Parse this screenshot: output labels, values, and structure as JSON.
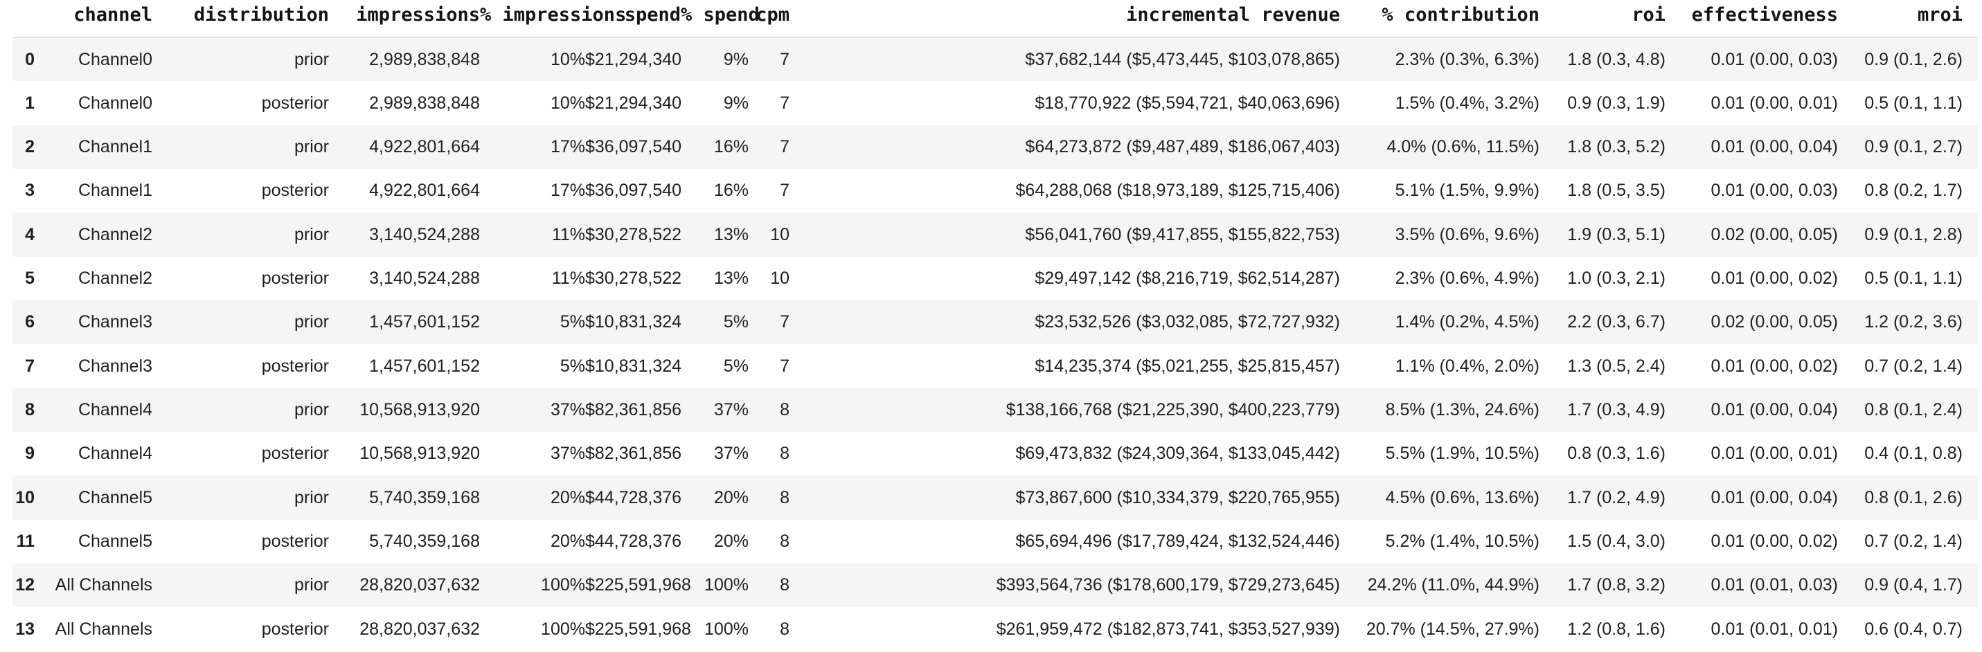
{
  "table": {
    "index_header": "",
    "columns": [
      {
        "key": "channel",
        "label": "channel"
      },
      {
        "key": "distribution",
        "label": "distribution"
      },
      {
        "key": "impressions",
        "label": "impressions"
      },
      {
        "key": "pct_impressions",
        "label": "% impressions"
      },
      {
        "key": "spend",
        "label": "spend"
      },
      {
        "key": "pct_spend",
        "label": "% spend"
      },
      {
        "key": "cpm",
        "label": "cpm"
      },
      {
        "key": "incremental_revenue",
        "label": "incremental revenue"
      },
      {
        "key": "pct_contribution",
        "label": "% contribution"
      },
      {
        "key": "roi",
        "label": "roi"
      },
      {
        "key": "effectiveness",
        "label": "effectiveness"
      },
      {
        "key": "mroi",
        "label": "mroi"
      }
    ],
    "rows": [
      {
        "index": "0",
        "channel": "Channel0",
        "distribution": "prior",
        "impressions": "2,989,838,848",
        "pct_impressions": "10%",
        "spend": "$21,294,340",
        "pct_spend": "9%",
        "cpm": "7",
        "incremental_revenue": "$37,682,144 ($5,473,445, $103,078,865)",
        "pct_contribution": "2.3% (0.3%, 6.3%)",
        "roi": "1.8 (0.3, 4.8)",
        "effectiveness": "0.01 (0.00, 0.03)",
        "mroi": "0.9 (0.1, 2.6)"
      },
      {
        "index": "1",
        "channel": "Channel0",
        "distribution": "posterior",
        "impressions": "2,989,838,848",
        "pct_impressions": "10%",
        "spend": "$21,294,340",
        "pct_spend": "9%",
        "cpm": "7",
        "incremental_revenue": "$18,770,922 ($5,594,721, $40,063,696)",
        "pct_contribution": "1.5% (0.4%, 3.2%)",
        "roi": "0.9 (0.3, 1.9)",
        "effectiveness": "0.01 (0.00, 0.01)",
        "mroi": "0.5 (0.1, 1.1)"
      },
      {
        "index": "2",
        "channel": "Channel1",
        "distribution": "prior",
        "impressions": "4,922,801,664",
        "pct_impressions": "17%",
        "spend": "$36,097,540",
        "pct_spend": "16%",
        "cpm": "7",
        "incremental_revenue": "$64,273,872 ($9,487,489, $186,067,403)",
        "pct_contribution": "4.0% (0.6%, 11.5%)",
        "roi": "1.8 (0.3, 5.2)",
        "effectiveness": "0.01 (0.00, 0.04)",
        "mroi": "0.9 (0.1, 2.7)"
      },
      {
        "index": "3",
        "channel": "Channel1",
        "distribution": "posterior",
        "impressions": "4,922,801,664",
        "pct_impressions": "17%",
        "spend": "$36,097,540",
        "pct_spend": "16%",
        "cpm": "7",
        "incremental_revenue": "$64,288,068 ($18,973,189, $125,715,406)",
        "pct_contribution": "5.1% (1.5%, 9.9%)",
        "roi": "1.8 (0.5, 3.5)",
        "effectiveness": "0.01 (0.00, 0.03)",
        "mroi": "0.8 (0.2, 1.7)"
      },
      {
        "index": "4",
        "channel": "Channel2",
        "distribution": "prior",
        "impressions": "3,140,524,288",
        "pct_impressions": "11%",
        "spend": "$30,278,522",
        "pct_spend": "13%",
        "cpm": "10",
        "incremental_revenue": "$56,041,760 ($9,417,855, $155,822,753)",
        "pct_contribution": "3.5% (0.6%, 9.6%)",
        "roi": "1.9 (0.3, 5.1)",
        "effectiveness": "0.02 (0.00, 0.05)",
        "mroi": "0.9 (0.1, 2.8)"
      },
      {
        "index": "5",
        "channel": "Channel2",
        "distribution": "posterior",
        "impressions": "3,140,524,288",
        "pct_impressions": "11%",
        "spend": "$30,278,522",
        "pct_spend": "13%",
        "cpm": "10",
        "incremental_revenue": "$29,497,142 ($8,216,719, $62,514,287)",
        "pct_contribution": "2.3% (0.6%, 4.9%)",
        "roi": "1.0 (0.3, 2.1)",
        "effectiveness": "0.01 (0.00, 0.02)",
        "mroi": "0.5 (0.1, 1.1)"
      },
      {
        "index": "6",
        "channel": "Channel3",
        "distribution": "prior",
        "impressions": "1,457,601,152",
        "pct_impressions": "5%",
        "spend": "$10,831,324",
        "pct_spend": "5%",
        "cpm": "7",
        "incremental_revenue": "$23,532,526 ($3,032,085, $72,727,932)",
        "pct_contribution": "1.4% (0.2%, 4.5%)",
        "roi": "2.2 (0.3, 6.7)",
        "effectiveness": "0.02 (0.00, 0.05)",
        "mroi": "1.2 (0.2, 3.6)"
      },
      {
        "index": "7",
        "channel": "Channel3",
        "distribution": "posterior",
        "impressions": "1,457,601,152",
        "pct_impressions": "5%",
        "spend": "$10,831,324",
        "pct_spend": "5%",
        "cpm": "7",
        "incremental_revenue": "$14,235,374 ($5,021,255, $25,815,457)",
        "pct_contribution": "1.1% (0.4%, 2.0%)",
        "roi": "1.3 (0.5, 2.4)",
        "effectiveness": "0.01 (0.00, 0.02)",
        "mroi": "0.7 (0.2, 1.4)"
      },
      {
        "index": "8",
        "channel": "Channel4",
        "distribution": "prior",
        "impressions": "10,568,913,920",
        "pct_impressions": "37%",
        "spend": "$82,361,856",
        "pct_spend": "37%",
        "cpm": "8",
        "incremental_revenue": "$138,166,768 ($21,225,390, $400,223,779)",
        "pct_contribution": "8.5% (1.3%, 24.6%)",
        "roi": "1.7 (0.3, 4.9)",
        "effectiveness": "0.01 (0.00, 0.04)",
        "mroi": "0.8 (0.1, 2.4)"
      },
      {
        "index": "9",
        "channel": "Channel4",
        "distribution": "posterior",
        "impressions": "10,568,913,920",
        "pct_impressions": "37%",
        "spend": "$82,361,856",
        "pct_spend": "37%",
        "cpm": "8",
        "incremental_revenue": "$69,473,832 ($24,309,364, $133,045,442)",
        "pct_contribution": "5.5% (1.9%, 10.5%)",
        "roi": "0.8 (0.3, 1.6)",
        "effectiveness": "0.01 (0.00, 0.01)",
        "mroi": "0.4 (0.1, 0.8)"
      },
      {
        "index": "10",
        "channel": "Channel5",
        "distribution": "prior",
        "impressions": "5,740,359,168",
        "pct_impressions": "20%",
        "spend": "$44,728,376",
        "pct_spend": "20%",
        "cpm": "8",
        "incremental_revenue": "$73,867,600 ($10,334,379, $220,765,955)",
        "pct_contribution": "4.5% (0.6%, 13.6%)",
        "roi": "1.7 (0.2, 4.9)",
        "effectiveness": "0.01 (0.00, 0.04)",
        "mroi": "0.8 (0.1, 2.6)"
      },
      {
        "index": "11",
        "channel": "Channel5",
        "distribution": "posterior",
        "impressions": "5,740,359,168",
        "pct_impressions": "20%",
        "spend": "$44,728,376",
        "pct_spend": "20%",
        "cpm": "8",
        "incremental_revenue": "$65,694,496 ($17,789,424, $132,524,446)",
        "pct_contribution": "5.2% (1.4%, 10.5%)",
        "roi": "1.5 (0.4, 3.0)",
        "effectiveness": "0.01 (0.00, 0.02)",
        "mroi": "0.7 (0.2, 1.4)"
      },
      {
        "index": "12",
        "channel": "All Channels",
        "distribution": "prior",
        "impressions": "28,820,037,632",
        "pct_impressions": "100%",
        "spend": "$225,591,968",
        "pct_spend": "100%",
        "cpm": "8",
        "incremental_revenue": "$393,564,736 ($178,600,179, $729,273,645)",
        "pct_contribution": "24.2% (11.0%, 44.9%)",
        "roi": "1.7 (0.8, 3.2)",
        "effectiveness": "0.01 (0.01, 0.03)",
        "mroi": "0.9 (0.4, 1.7)"
      },
      {
        "index": "13",
        "channel": "All Channels",
        "distribution": "posterior",
        "impressions": "28,820,037,632",
        "pct_impressions": "100%",
        "spend": "$225,591,968",
        "pct_spend": "100%",
        "cpm": "8",
        "incremental_revenue": "$261,959,472 ($182,873,741, $353,527,939)",
        "pct_contribution": "20.7% (14.5%, 27.9%)",
        "roi": "1.2 (0.8, 1.6)",
        "effectiveness": "0.01 (0.01, 0.01)",
        "mroi": "0.6 (0.4, 0.7)"
      }
    ]
  },
  "colors": {
    "row_stripe": "#f5f5f5",
    "header_border": "#e1e1e1",
    "body_text": "#1f1f1f",
    "header_text": "#141414",
    "background": "#ffffff"
  }
}
